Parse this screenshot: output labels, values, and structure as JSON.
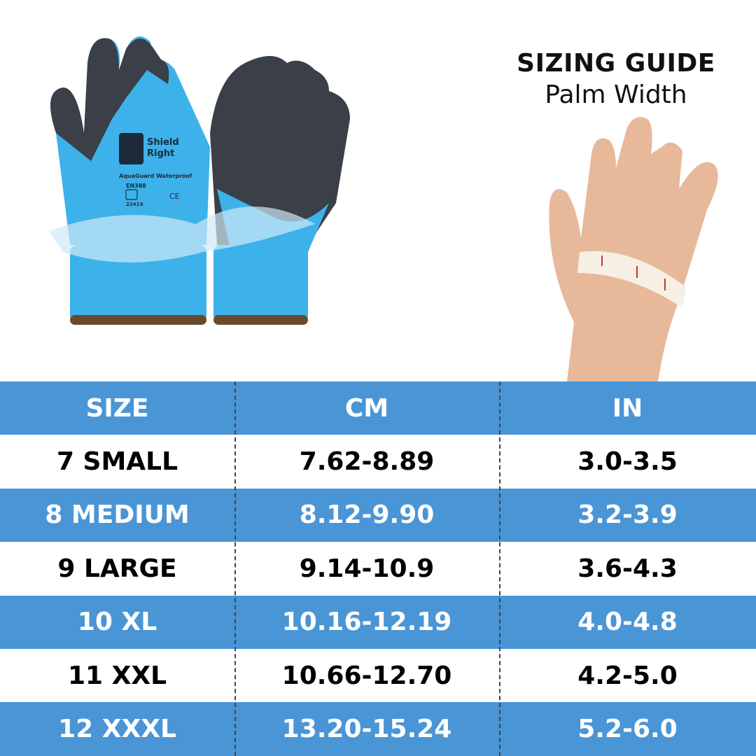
{
  "header": {
    "title": "SIZING GUIDE",
    "subtitle": "Palm Width"
  },
  "product": {
    "brand": "Shield Right",
    "model": "AquaGuard Waterproof",
    "standard": "EN388",
    "code": "2241X",
    "mark": "CE"
  },
  "colors": {
    "accent": "#4a95d6",
    "glove_blue": "#3db1ea",
    "glove_palm": "#3a3f48"
  },
  "table": {
    "columns": [
      "SIZE",
      "CM",
      "IN"
    ],
    "rows": [
      {
        "size": "7 SMALL",
        "cm": "7.62-8.89",
        "in": "3.0-3.5"
      },
      {
        "size": "8 MEDIUM",
        "cm": "8.12-9.90",
        "in": "3.2-3.9"
      },
      {
        "size": "9 LARGE",
        "cm": "9.14-10.9",
        "in": "3.6-4.3"
      },
      {
        "size": "10 XL",
        "cm": "10.16-12.19",
        "in": "4.0-4.8"
      },
      {
        "size": "11 XXL",
        "cm": "10.66-12.70",
        "in": "4.2-5.0"
      },
      {
        "size": "12 XXXL",
        "cm": "13.20-15.24",
        "in": "5.2-6.0"
      }
    ]
  }
}
